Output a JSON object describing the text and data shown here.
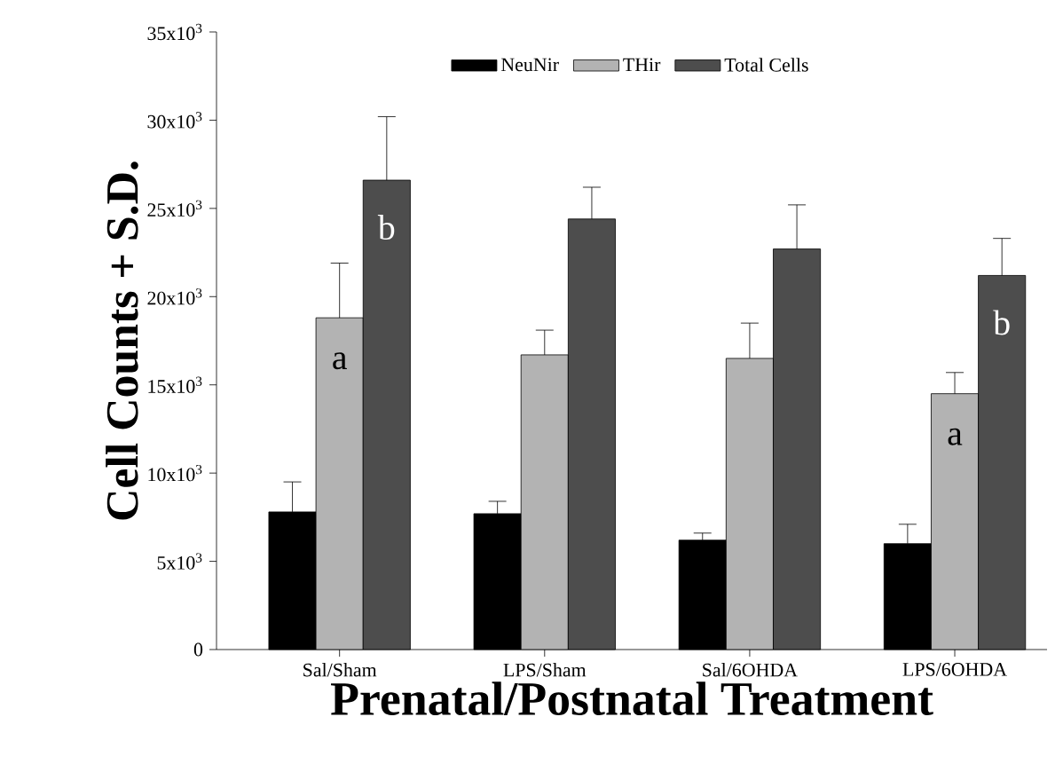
{
  "chart_data": {
    "type": "bar",
    "xlabel": "Prenatal/Postnatal Treatment",
    "ylabel": "Cell Counts + S.D.",
    "categories": [
      "Sal/Sham",
      "LPS/Sham",
      "Sal/6OHDA",
      "LPS/6OHDA"
    ],
    "series": [
      {
        "name": "NeuNir",
        "color": "#000000",
        "values": [
          7800,
          7700,
          6200,
          6000
        ],
        "errors": [
          1700,
          700,
          400,
          1100
        ]
      },
      {
        "name": "THir",
        "color": "#b3b3b3",
        "values": [
          18800,
          16700,
          16500,
          14500
        ],
        "errors": [
          3100,
          1400,
          2000,
          1200
        ],
        "value_labels": [
          "a",
          null,
          null,
          "a"
        ]
      },
      {
        "name": "Total Cells",
        "color": "#4d4d4d",
        "values": [
          26600,
          24400,
          22700,
          21200
        ],
        "errors": [
          3600,
          1800,
          2500,
          2100
        ],
        "value_labels": [
          "b",
          null,
          null,
          "b"
        ]
      }
    ],
    "ylim": [
      0,
      35000
    ],
    "yticks": [
      0,
      {
        "value": 5000,
        "label": "5x10$^{3}$"
      },
      {
        "value": 10000,
        "label": "10x10$^{3}$"
      },
      {
        "value": 15000,
        "label": "15x10$^{3}$"
      },
      {
        "value": 20000,
        "label": "20x10$^{3}$"
      },
      {
        "value": 25000,
        "label": "25x10$^{3}$"
      },
      {
        "value": 30000,
        "label": "30x10$^{3}$"
      },
      {
        "value": 35000,
        "label": "35x10$^{3}$"
      }
    ],
    "legend": "top",
    "grid": false
  }
}
